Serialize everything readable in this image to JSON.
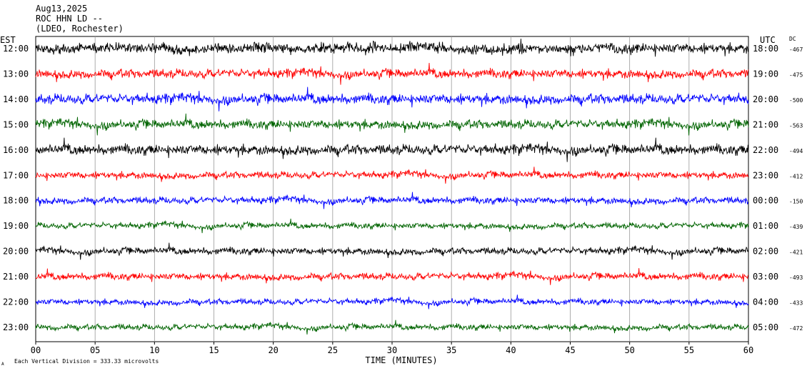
{
  "header": {
    "date": "Aug13,2025",
    "station": "ROC HHN LD --",
    "network": "(LDEO, Rochester)"
  },
  "labels": {
    "left_zone": "EST",
    "right_zone": "UTC",
    "dc_header": "DC",
    "scale_note": "Each Vertical Division =  333.33 microvolts",
    "corner_mark": "A"
  },
  "chart_data": {
    "type": "line",
    "title": "ROC HHN LD --",
    "xlabel": "TIME (MINUTES)",
    "ylabel": "",
    "xlim": [
      0,
      60
    ],
    "x_ticks": [
      "00",
      "05",
      "10",
      "15",
      "20",
      "25",
      "30",
      "35",
      "40",
      "45",
      "50",
      "55",
      "60"
    ],
    "x_tick_values": [
      0,
      5,
      10,
      15,
      20,
      25,
      30,
      35,
      40,
      45,
      50,
      55,
      60
    ],
    "grid": true,
    "trace_colors": [
      "#000000",
      "#ff0000",
      "#0000ff",
      "#006400"
    ],
    "series": [
      {
        "est": "12:00",
        "utc": "18:00",
        "dc": "-467",
        "color": "#000000"
      },
      {
        "est": "13:00",
        "utc": "19:00",
        "dc": "-475",
        "color": "#ff0000"
      },
      {
        "est": "14:00",
        "utc": "20:00",
        "dc": "-500",
        "color": "#0000ff"
      },
      {
        "est": "15:00",
        "utc": "21:00",
        "dc": "-563",
        "color": "#006400"
      },
      {
        "est": "16:00",
        "utc": "22:00",
        "dc": "-494",
        "color": "#000000"
      },
      {
        "est": "17:00",
        "utc": "23:00",
        "dc": "-412",
        "color": "#ff0000"
      },
      {
        "est": "18:00",
        "utc": "00:00",
        "dc": "-150",
        "color": "#0000ff"
      },
      {
        "est": "19:00",
        "utc": "01:00",
        "dc": "-439",
        "color": "#006400"
      },
      {
        "est": "20:00",
        "utc": "02:00",
        "dc": "-421",
        "color": "#000000"
      },
      {
        "est": "21:00",
        "utc": "03:00",
        "dc": "-493",
        "color": "#ff0000"
      },
      {
        "est": "22:00",
        "utc": "04:00",
        "dc": "-433",
        "color": "#0000ff"
      },
      {
        "est": "23:00",
        "utc": "05:00",
        "dc": "-472",
        "color": "#006400"
      }
    ]
  }
}
